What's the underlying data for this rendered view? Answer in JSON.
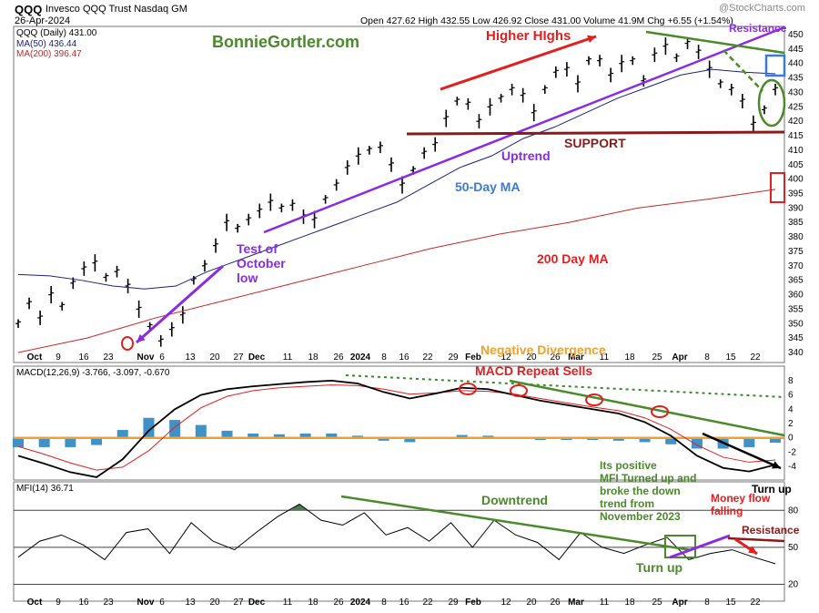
{
  "header": {
    "symbol": "QQQ",
    "name": "Invesco QQQ Trust  Nasdaq GM",
    "date": "26-Apr-2024",
    "watermark": "@StockCharts.com",
    "ohlc": "Open 427.62  High 432.55  Low 426.92  Close 431.00  Volume 41.9M  Chg +6.55 (+1.54%)",
    "chg_up_icon": "triangle-up-icon"
  },
  "legend": {
    "price": "QQQ (Daily) 431.00",
    "ma50": "MA(50) 436.44",
    "ma200": "MA(200) 396.47"
  },
  "colors": {
    "price": "#000000",
    "ma50": "#1a237e",
    "ma200": "#c62828",
    "annot_green": "#4a8a2a",
    "annot_purple": "#8a2be2",
    "annot_red": "#e02020",
    "support": "#8b1a1a",
    "macd_hist": "#3f92c8",
    "macd_zero": "#f0a030",
    "mfi_fill": "#4f7a4f"
  },
  "annotations": {
    "site": "BonnieGortler.com",
    "higher_highs": "Higher HIghs",
    "resistance": "Resistance",
    "support": "SUPPORT",
    "uptrend": "Uptrend",
    "ma50": "50-Day MA",
    "test_1": "Test of",
    "test_2": "October",
    "test_3": "low",
    "ma200": "200 Day MA",
    "neg_div": "Negative Divergence",
    "macd_sells": "MACD Repeat Sells",
    "turn_up_macd": "Turn up",
    "positive_1": "Its positive",
    "positive_2": "MFI Turned up and",
    "positive_3": "broke the down",
    "positive_4": "trend from",
    "positive_5": "November 2023",
    "downtrend": "Downtrend",
    "money_1": "Money flow",
    "money_2": "falling",
    "mfi_resistance": "Resistance",
    "turn_up_mfi": "Turn up"
  },
  "macd_legend": "MACD(12,26,9) -3.766, -3.097, -0.670",
  "mfi_legend": "MFI(14) 36.71",
  "x_labels": [
    "Oct",
    "9",
    "16",
    "23",
    "Nov",
    "6",
    "13",
    "20",
    "27",
    "Dec",
    "11",
    "18",
    "26",
    "2024",
    "8",
    "16",
    "22",
    "29",
    "Feb",
    "12",
    "20",
    "26",
    "Mar",
    "11",
    "18",
    "25",
    "Apr",
    "8",
    "15",
    "22"
  ],
  "chart_data": [
    {
      "type": "line",
      "title": "QQQ (Daily)",
      "ylim": [
        337,
        452
      ],
      "yticks": [
        340,
        345,
        350,
        355,
        360,
        365,
        370,
        375,
        380,
        385,
        390,
        395,
        400,
        405,
        410,
        415,
        420,
        425,
        430,
        435,
        440,
        445,
        450
      ],
      "series": [
        {
          "name": "QQQ (Daily)",
          "values": [
            350,
            357,
            352,
            360,
            356,
            364,
            369,
            371,
            366,
            368,
            363,
            355,
            349,
            344,
            348,
            353,
            365,
            370,
            377,
            385,
            383,
            386,
            389,
            392,
            390,
            391,
            387,
            386,
            393,
            398,
            404,
            408,
            410,
            411,
            405,
            398,
            403,
            409,
            412,
            421,
            427,
            426,
            420,
            425,
            428,
            431,
            429,
            423,
            431,
            437,
            438,
            433,
            441,
            441,
            436,
            440,
            441,
            434,
            443,
            446,
            442,
            447,
            444,
            438,
            433,
            431,
            427,
            419,
            424,
            431
          ],
          "x_labels_at": "daily"
        },
        {
          "name": "MA(50)",
          "values": [
            367,
            366.5,
            365,
            363,
            362,
            363,
            368,
            372,
            376,
            380,
            384,
            388,
            392,
            398,
            404,
            408,
            414,
            418,
            423,
            428,
            432,
            436,
            438,
            437,
            436.44
          ]
        },
        {
          "name": "MA(200)",
          "values": [
            340,
            345,
            352,
            358,
            364,
            370,
            376,
            381,
            385,
            390,
            393,
            396.47
          ]
        }
      ]
    },
    {
      "type": "line",
      "title": "MACD(12,26,9)",
      "ylim": [
        -6,
        9
      ],
      "yticks": [
        -4,
        -2,
        0,
        2,
        4,
        6,
        8
      ],
      "series": [
        {
          "name": "MACD",
          "values": [
            -2.5,
            -3.6,
            -4.8,
            -5.5,
            -3,
            1,
            4,
            6,
            6.8,
            7.2,
            7.5,
            7.8,
            8,
            7.6,
            6.4,
            5.5,
            6.2,
            7,
            6.8,
            6,
            5.2,
            4.6,
            4,
            3.4,
            2.2,
            0.3,
            -2.5,
            -4.2,
            -4.7,
            -3.766
          ]
        },
        {
          "name": "Signal",
          "values": [
            -1.2,
            -2.3,
            -3.5,
            -4.5,
            -4.1,
            -1.8,
            1.5,
            4.2,
            5.8,
            6.6,
            7,
            7.2,
            7.4,
            7.3,
            6.8,
            6.1,
            6.3,
            6.6,
            6.5,
            6.1,
            5.5,
            4.9,
            4.3,
            3.8,
            2.8,
            1.2,
            -1.0,
            -2.7,
            -3.4,
            -3.097
          ]
        },
        {
          "name": "Histogram",
          "values": [
            -1.3,
            -1.3,
            -1.3,
            -1,
            1.1,
            2.8,
            2.5,
            1.8,
            1,
            0.6,
            0.5,
            0.6,
            0.6,
            0.3,
            -0.4,
            -0.6,
            -0.1,
            0.4,
            0.3,
            -0.1,
            -0.3,
            -0.3,
            -0.3,
            -0.4,
            -0.6,
            -0.9,
            -1.5,
            -1.5,
            -1.3,
            -0.67
          ]
        }
      ]
    },
    {
      "type": "line",
      "title": "MFI(14)",
      "ylim": [
        10,
        95
      ],
      "yticks": [
        20,
        50,
        80
      ],
      "series": [
        {
          "name": "MFI",
          "values": [
            42,
            55,
            60,
            52,
            40,
            62,
            65,
            45,
            70,
            55,
            48,
            62,
            75,
            85,
            72,
            68,
            78,
            60,
            66,
            55,
            70,
            50,
            72,
            60,
            54,
            40,
            62,
            50,
            45,
            52,
            58,
            40,
            45,
            48,
            42,
            36.71
          ]
        }
      ]
    }
  ]
}
